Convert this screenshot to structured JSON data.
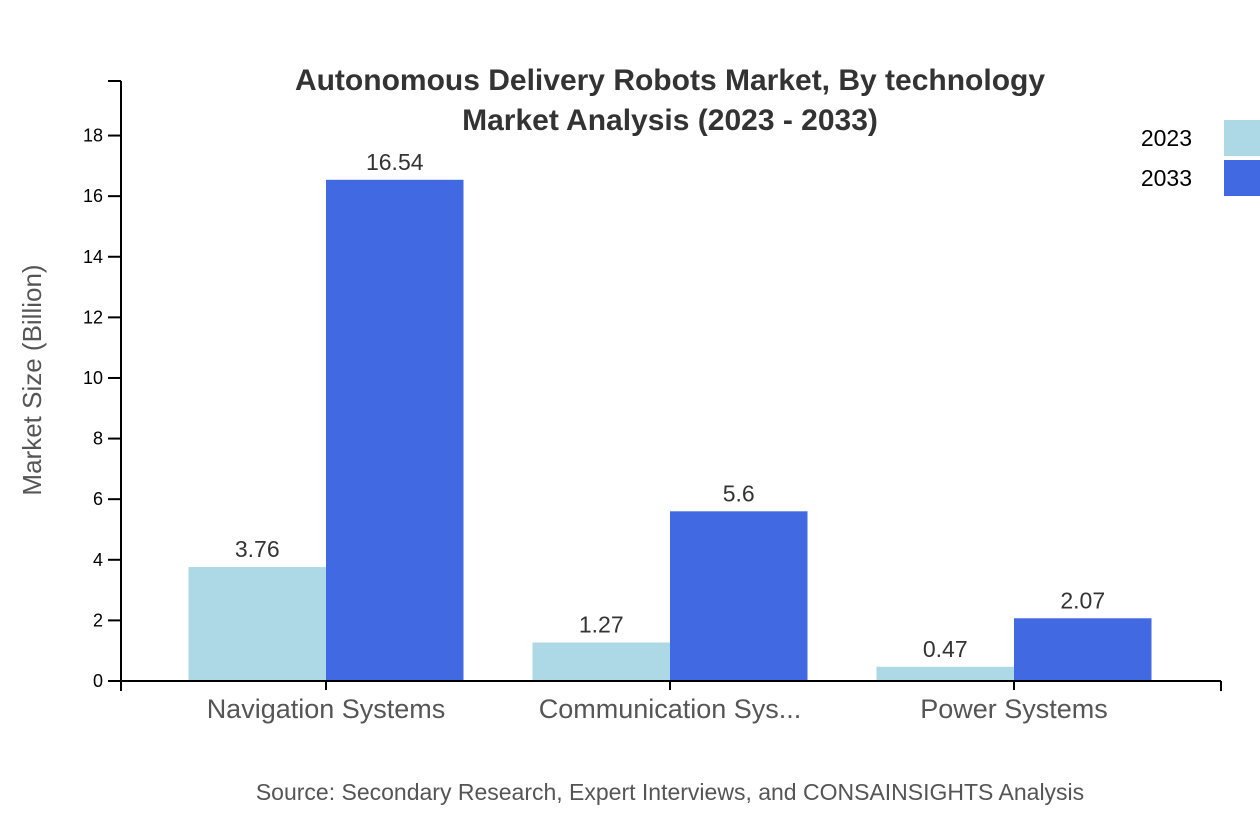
{
  "chart_data": {
    "type": "bar",
    "title": [
      "Autonomous Delivery Robots Market, By technology",
      "Market Analysis (2023 - 2033)"
    ],
    "xlabel": "",
    "ylabel": "Market Size (Billion)",
    "categories": [
      "Navigation Systems",
      "Communication Sys...",
      "Power Systems"
    ],
    "series": [
      {
        "name": "2023",
        "color": "#add8e6",
        "values": [
          3.76,
          1.27,
          0.47
        ],
        "labels": [
          "3.76",
          "1.27",
          "0.47"
        ]
      },
      {
        "name": "2033",
        "color": "#4169e1",
        "values": [
          16.54,
          5.6,
          2.07
        ],
        "labels": [
          "16.54",
          "5.6",
          "2.07"
        ]
      }
    ],
    "ylim": [
      0,
      19.8
    ],
    "yticks": [
      0,
      2,
      4,
      6,
      8,
      10,
      12,
      14,
      16,
      18
    ],
    "grid": false,
    "legend_position": "top-right",
    "source": "Source: Secondary Research, Expert Interviews, and CONSAINSIGHTS Analysis"
  }
}
